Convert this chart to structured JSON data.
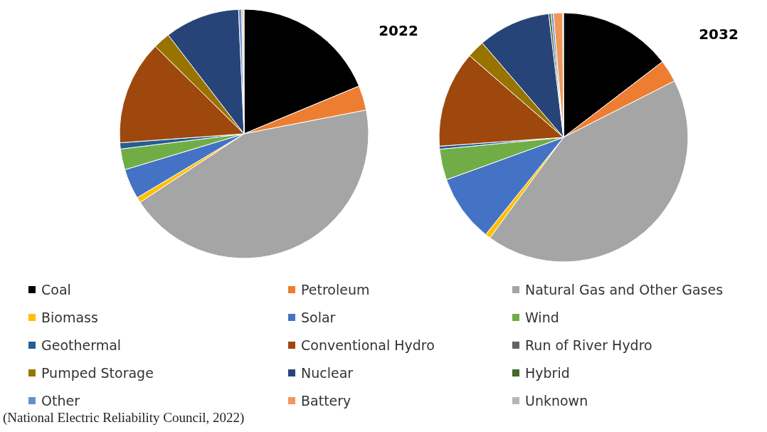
{
  "chart_data": {
    "type": "pie",
    "legend": "bottom",
    "categories": [
      "Coal",
      "Petroleum",
      "Natural Gas and Other Gases",
      "Biomass",
      "Solar",
      "Wind",
      "Geothermal",
      "Conventional Hydro",
      "Run of River Hydro",
      "Pumped Storage",
      "Nuclear",
      "Hybrid",
      "Other",
      "Battery",
      "Unknown"
    ],
    "colors": [
      "#000000",
      "#ed7d31",
      "#a5a5a5",
      "#ffc000",
      "#4472c4",
      "#70ad47",
      "#255e91",
      "#9e480e",
      "#636363",
      "#997300",
      "#264478",
      "#43682b",
      "#698ed0",
      "#f1975a",
      "#b7b7b7"
    ],
    "series": [
      {
        "name": "2022",
        "values": [
          18.7,
          3.2,
          43.7,
          0.7,
          3.9,
          2.7,
          0.8,
          13.5,
          null,
          2.2,
          9.7,
          null,
          0.4,
          0.2,
          0.1
        ]
      },
      {
        "name": "2032",
        "values": [
          14.6,
          2.9,
          42.5,
          0.7,
          8.7,
          4.0,
          0.4,
          12.5,
          null,
          2.3,
          9.4,
          0.3,
          0.3,
          1.2,
          0.1
        ]
      }
    ],
    "annotations": [
      "(National Electric Reliability Council, 2022)"
    ]
  }
}
